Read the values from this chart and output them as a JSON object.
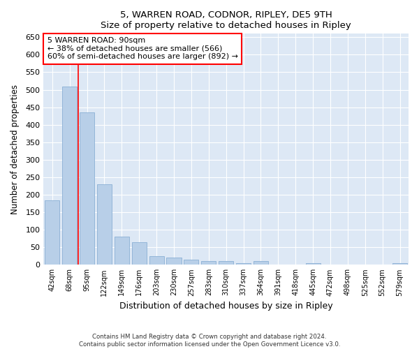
{
  "title": "5, WARREN ROAD, CODNOR, RIPLEY, DE5 9TH",
  "subtitle": "Size of property relative to detached houses in Ripley",
  "xlabel": "Distribution of detached houses by size in Ripley",
  "ylabel": "Number of detached properties",
  "bar_color": "#b8cfe8",
  "bar_edge_color": "#8aafd4",
  "background_color": "#dde8f5",
  "grid_color": "#ffffff",
  "fig_background": "#ffffff",
  "categories": [
    "42sqm",
    "68sqm",
    "95sqm",
    "122sqm",
    "149sqm",
    "176sqm",
    "203sqm",
    "230sqm",
    "257sqm",
    "283sqm",
    "310sqm",
    "337sqm",
    "364sqm",
    "391sqm",
    "418sqm",
    "445sqm",
    "472sqm",
    "498sqm",
    "525sqm",
    "552sqm",
    "579sqm"
  ],
  "values": [
    185,
    510,
    435,
    230,
    80,
    65,
    25,
    20,
    15,
    10,
    10,
    5,
    10,
    0,
    0,
    5,
    0,
    0,
    0,
    0,
    5
  ],
  "red_line_x": 1.5,
  "annotation_line1": "5 WARREN ROAD: 90sqm",
  "annotation_line2": "← 38% of detached houses are smaller (566)",
  "annotation_line3": "60% of semi-detached houses are larger (892) →",
  "ylim": [
    0,
    660
  ],
  "yticks": [
    0,
    50,
    100,
    150,
    200,
    250,
    300,
    350,
    400,
    450,
    500,
    550,
    600,
    650
  ],
  "footnote": "Contains HM Land Registry data © Crown copyright and database right 2024.\nContains public sector information licensed under the Open Government Licence v3.0."
}
